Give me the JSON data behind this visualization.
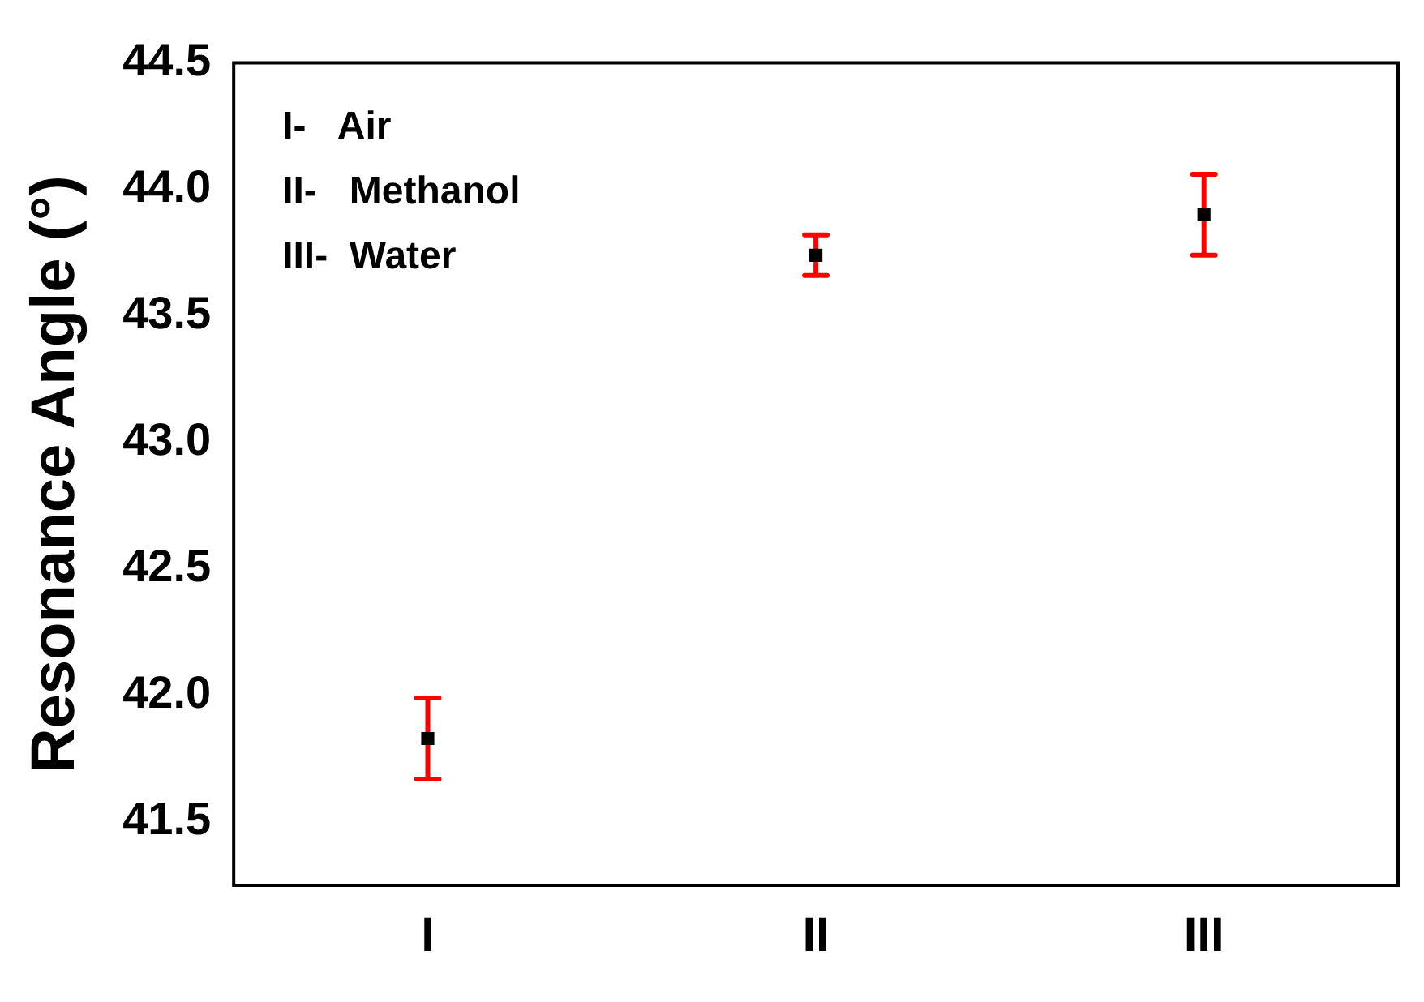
{
  "chart_data": {
    "type": "scatter",
    "ylabel": "Resonance Angle (°)",
    "categories": [
      "I",
      "II",
      "III"
    ],
    "series": [
      {
        "color": "#000000",
        "values": [
          41.83,
          43.74,
          43.9
        ],
        "errors": [
          0.16,
          0.08,
          0.16
        ]
      }
    ],
    "ylim": [
      41.25,
      44.5
    ],
    "yticks": [
      41.5,
      {
        "value": 42,
        "label": "42.0"
      },
      42.5,
      {
        "value": 43,
        "label": "43.0"
      },
      43.5,
      {
        "value": 44,
        "label": "44.0"
      },
      44.5
    ],
    "grid": false,
    "legend": false,
    "marker": "square",
    "annotations": [
      "I-   Air",
      "II-   Methanol",
      "III-  Water"
    ]
  }
}
